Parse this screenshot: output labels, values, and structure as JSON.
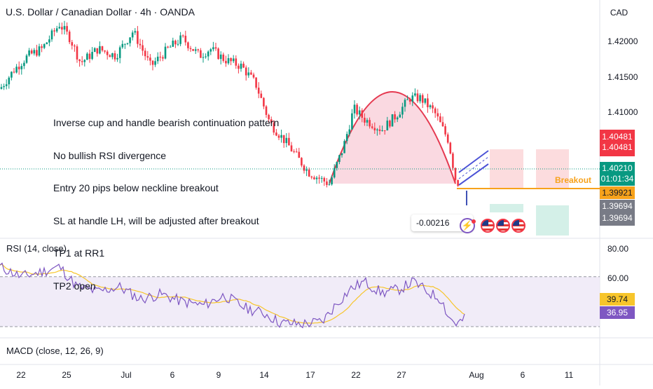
{
  "header": {
    "symbol_title": "U.S. Dollar / Canadian Dollar · 4h · OANDA",
    "currency": "CAD"
  },
  "annotation": {
    "lines": [
      "Inverse cup and handle bearish continuation pattern",
      "No bullish RSI divergence",
      "Entry 20 pips below neckline breakout",
      "SL at handle LH, will be adjusted after breakout",
      "TP1 at RR1",
      "TP2 open"
    ],
    "breakout_label": "Breakout",
    "position_value": "-0.00216"
  },
  "price_axis": {
    "ticks": [
      "1.42000",
      "1.41500",
      "1.41000"
    ],
    "tags": {
      "stop_top": "1.40481",
      "stop_bottom": "1.40481",
      "last_price": "1.40210",
      "countdown": "01:01:34",
      "breakout": "1.39921",
      "target_top": "1.39694",
      "target_bottom": "1.39694"
    }
  },
  "rsi": {
    "label": "RSI (14, close)",
    "ticks": [
      "80.00",
      "60.00"
    ],
    "value_ma": "39.74",
    "value_rsi": "36.95"
  },
  "macd": {
    "label": "MACD (close, 12, 26, 9)"
  },
  "time_axis": {
    "labels": [
      "22",
      "25",
      "Jul",
      "6",
      "9",
      "14",
      "17",
      "22",
      "27",
      "Aug",
      "6",
      "11"
    ]
  },
  "colors": {
    "up": "#089981",
    "down": "#f23645",
    "cup_fill": "#f8c9d4",
    "cup_line": "#e53950",
    "breakout_line": "#f7a21b",
    "channel": "#4b52d6",
    "rsi_line": "#7e57c2",
    "rsi_ma": "#f7c52b",
    "rsi_band": "#ede7f6",
    "stop_zone": "#fbd3d6",
    "target_zone": "#cfeee6",
    "last_price_tag": "#089981",
    "stop_tag": "#f23645",
    "target_tag": "#787b86",
    "rsi_tag": "#7e57c2",
    "ma_tag": "#f7c52b"
  },
  "chart_data": {
    "type": "candlestick",
    "yticks": [
      1.41,
      1.415,
      1.42
    ],
    "rsi_ticks": [
      60,
      80
    ],
    "rsi_last": 36.95,
    "rsi_ma_last": 39.74
  }
}
